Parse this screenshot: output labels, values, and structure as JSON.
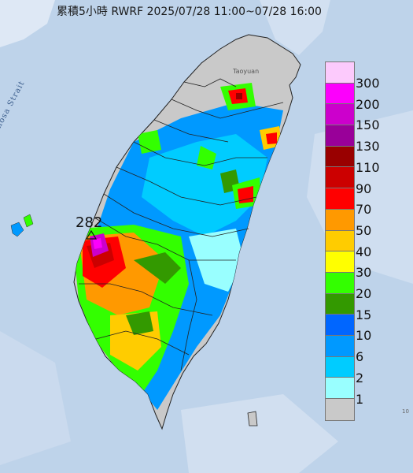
{
  "title": "累積5小時 RWRF 2025/07/28 11:00~07/28 16:00",
  "sea_label": "Formosa Strait",
  "place_label": "Taoyuan",
  "max_marker": {
    "value": "282",
    "icon": "triangle-marker-icon"
  },
  "edge_value": "10",
  "legend": {
    "labels": [
      "300",
      "200",
      "150",
      "130",
      "110",
      "90",
      "70",
      "50",
      "40",
      "30",
      "20",
      "15",
      "10",
      "6",
      "2",
      "1"
    ],
    "colors": [
      "#fccafc",
      "#fc00fc",
      "#cc00cc",
      "#990099",
      "#990000",
      "#cc0000",
      "#ff0000",
      "#ff9900",
      "#ffcc00",
      "#ffff00",
      "#33ff00",
      "#339900",
      "#0066ff",
      "#0099ff",
      "#00ccff",
      "#99ffff",
      "#c9c9c9"
    ]
  }
}
